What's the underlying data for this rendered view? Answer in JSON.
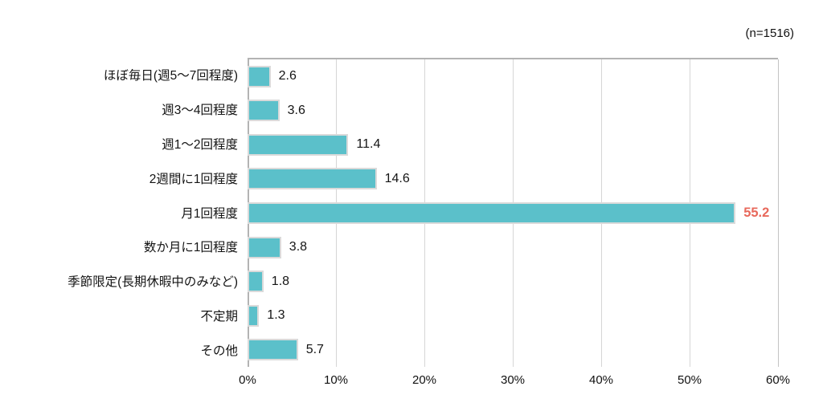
{
  "n_label": "(n=1516)",
  "colors": {
    "bar": "#5bc0ca",
    "bar_outline": "#dadada",
    "highlight_value_text": "#e8695c",
    "gridline": "#d6d6d6",
    "axis_line": "#b3b3b3",
    "text": "#141414"
  },
  "chart_data": {
    "type": "bar",
    "orientation": "horizontal",
    "title": "",
    "annotation": "(n=1516)",
    "categories": [
      "ほぼ毎日(週5〜7回程度)",
      "週3〜4回程度",
      "週1〜2回程度",
      "2週間に1回程度",
      "月1回程度",
      "数か月に1回程度",
      "季節限定(長期休暇中のみなど)",
      "不定期",
      "その他"
    ],
    "values": [
      2.6,
      3.6,
      11.4,
      14.6,
      55.2,
      3.8,
      1.8,
      1.3,
      5.7
    ],
    "value_labels": [
      "2.6",
      "3.6",
      "11.4",
      "14.6",
      "55.2",
      "3.8",
      "1.8",
      "1.3",
      "5.7"
    ],
    "highlight_index": 4,
    "xlabel": "",
    "ylabel": "",
    "xlim": [
      0,
      60
    ],
    "x_ticks": [
      "0%",
      "10%",
      "20%",
      "30%",
      "40%",
      "50%",
      "60%"
    ],
    "grid": true,
    "legend": false
  }
}
